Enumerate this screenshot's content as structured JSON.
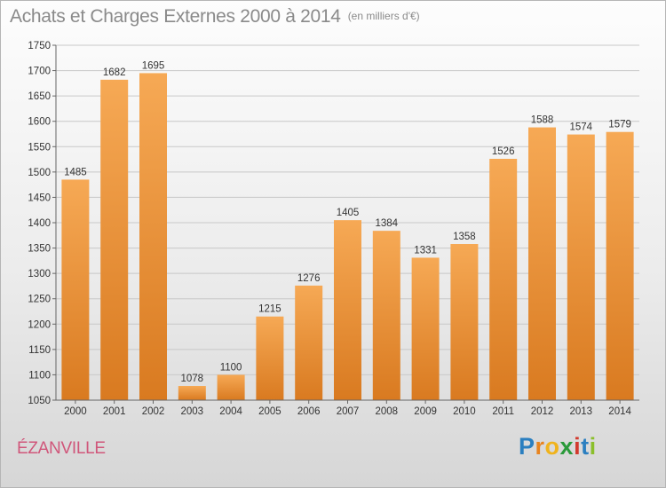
{
  "header": {
    "title": "Achats et Charges Externes 2000 à 2014",
    "unit": "(en milliers d'€)"
  },
  "commune": "ÉZANVILLE",
  "logo": {
    "letters": [
      "P",
      "r",
      "o",
      "x",
      "i",
      "t",
      "i"
    ],
    "colors": [
      "#2b7fc0",
      "#e8841f",
      "#f0b31c",
      "#2a9a3a",
      "#d23a2e",
      "#2b7fc0",
      "#8bbf2b"
    ]
  },
  "colors": {
    "bar_top": "#f6a955",
    "bar_bottom": "#d97a20",
    "grid": "#c8c8c8",
    "axis": "#666666"
  },
  "chart_data": {
    "type": "bar",
    "title": "Achats et Charges Externes 2000 à 2014",
    "subtitle": "(en milliers d'€)",
    "categories": [
      "2000",
      "2001",
      "2002",
      "2003",
      "2004",
      "2005",
      "2006",
      "2007",
      "2008",
      "2009",
      "2010",
      "2011",
      "2012",
      "2013",
      "2014"
    ],
    "values": [
      1485,
      1682,
      1695,
      1078,
      1100,
      1215,
      1276,
      1405,
      1384,
      1331,
      1358,
      1526,
      1588,
      1574,
      1579
    ],
    "ylim": [
      1050,
      1750
    ],
    "yticks": [
      1050,
      1100,
      1150,
      1200,
      1250,
      1300,
      1350,
      1400,
      1450,
      1500,
      1550,
      1600,
      1650,
      1700,
      1750
    ],
    "grid": true,
    "xlabel": "",
    "ylabel": ""
  }
}
